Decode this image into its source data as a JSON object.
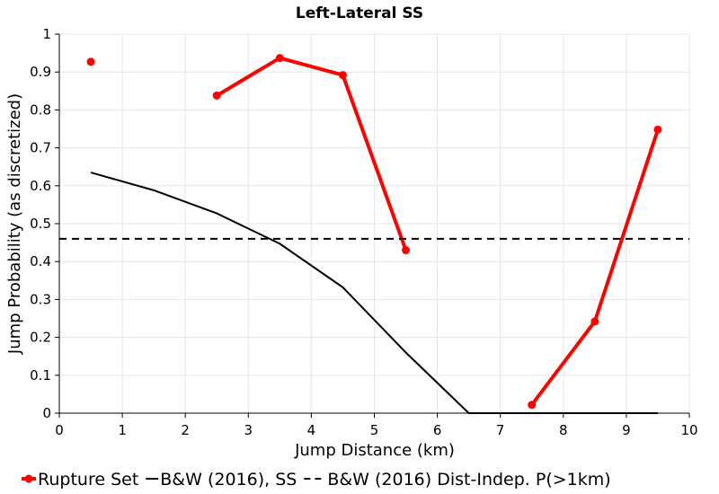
{
  "chart_data": {
    "type": "line",
    "title": "Left-Lateral SS",
    "xlabel": "Jump Distance (km)",
    "ylabel": "Jump Probability (as discretized)",
    "xlim": [
      0,
      10
    ],
    "ylim": [
      0,
      1
    ],
    "x_ticks": [
      "0",
      "1",
      "2",
      "3",
      "4",
      "5",
      "6",
      "7",
      "8",
      "9",
      "10"
    ],
    "y_ticks": [
      "0",
      "0.1",
      "0.2",
      "0.3",
      "0.4",
      "0.5",
      "0.6",
      "0.7",
      "0.8",
      "0.9",
      "1"
    ],
    "grid": true,
    "legend_position": "bottom",
    "series": [
      {
        "name": "Rupture Set",
        "color": "#ff0000",
        "style": "solid-with-markers",
        "points": [
          [
            0.5,
            0.927
          ],
          [
            2.5,
            0.838
          ],
          [
            3.5,
            0.937
          ],
          [
            4.5,
            0.892
          ],
          [
            5.5,
            0.43
          ],
          [
            7.5,
            0.022
          ],
          [
            8.5,
            0.242
          ],
          [
            9.5,
            0.748
          ]
        ],
        "segments": [
          [
            0,
            0
          ],
          [
            1,
            4
          ],
          [
            5,
            7
          ]
        ]
      },
      {
        "name": "B&W (2016), SS",
        "color": "#000000",
        "style": "solid",
        "points": [
          [
            0.5,
            0.635
          ],
          [
            1.5,
            0.588
          ],
          [
            2.5,
            0.527
          ],
          [
            3.5,
            0.447
          ],
          [
            4.5,
            0.332
          ],
          [
            5.5,
            0.16
          ],
          [
            6.5,
            0.0
          ],
          [
            7.5,
            0.0
          ],
          [
            8.5,
            0.0
          ],
          [
            9.5,
            0.0
          ]
        ]
      },
      {
        "name": "B&W (2016) Dist-Indep. P(>1km)",
        "color": "#000000",
        "style": "dashed",
        "points": [
          [
            0,
            0.46
          ],
          [
            10,
            0.46
          ]
        ]
      }
    ]
  }
}
